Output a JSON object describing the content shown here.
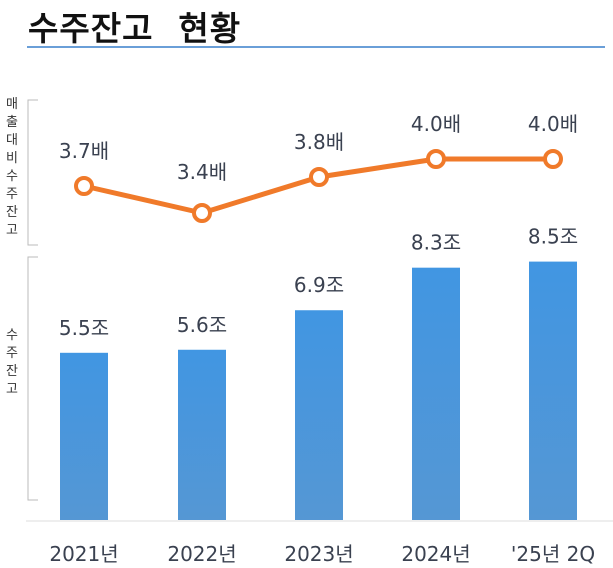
{
  "title": "수주잔고  현황",
  "chart_data": {
    "type": "bar+line",
    "categories": [
      "2021년",
      "2022년",
      "2023년",
      "2024년",
      "'25년 2Q"
    ],
    "series": [
      {
        "name": "수주잔고",
        "type": "bar",
        "values": [
          5.5,
          5.6,
          6.9,
          8.3,
          8.5
        ],
        "labels": [
          "5.5조",
          "5.6조",
          "6.9조",
          "8.3조",
          "8.5조"
        ],
        "color": "#4696e0"
      },
      {
        "name": "매출대비수주잔고",
        "type": "line",
        "values": [
          3.7,
          3.4,
          3.8,
          4.0,
          4.0
        ],
        "labels": [
          "3.7배",
          "3.4배",
          "3.8배",
          "4.0배",
          "4.0배"
        ],
        "color": "#f07a2a"
      }
    ],
    "axis_labels": {
      "line": "매출대비수주잔고",
      "bar": "수주잔고"
    },
    "grid": false
  }
}
